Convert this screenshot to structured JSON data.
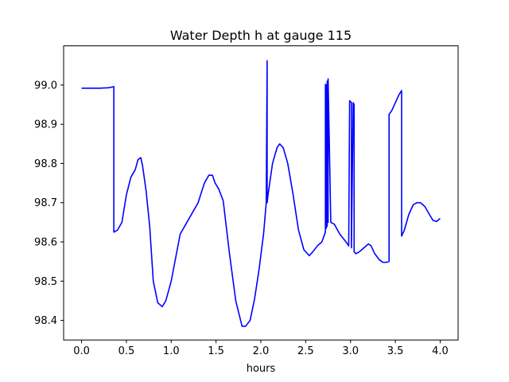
{
  "chart_data": {
    "type": "line",
    "title": "Water Depth h at gauge 115",
    "xlabel": "hours",
    "ylabel": "",
    "xlim": [
      -0.2,
      4.2
    ],
    "ylim": [
      98.35,
      99.1
    ],
    "grid": false,
    "colors": {
      "line": "#0000ff",
      "axes": "#000000",
      "background": "#ffffff"
    },
    "x_ticks": [
      {
        "value": 0.0,
        "label": "0.0"
      },
      {
        "value": 0.5,
        "label": "0.5"
      },
      {
        "value": 1.0,
        "label": "1.0"
      },
      {
        "value": 1.5,
        "label": "1.5"
      },
      {
        "value": 2.0,
        "label": "2.0"
      },
      {
        "value": 2.5,
        "label": "2.5"
      },
      {
        "value": 3.0,
        "label": "3.0"
      },
      {
        "value": 3.5,
        "label": "3.5"
      },
      {
        "value": 4.0,
        "label": "4.0"
      }
    ],
    "y_ticks": [
      {
        "value": 98.4,
        "label": "98.4"
      },
      {
        "value": 98.5,
        "label": "98.5"
      },
      {
        "value": 98.6,
        "label": "98.6"
      },
      {
        "value": 98.7,
        "label": "98.7"
      },
      {
        "value": 98.8,
        "label": "98.8"
      },
      {
        "value": 98.9,
        "label": "98.9"
      },
      {
        "value": 99.0,
        "label": "99.0"
      }
    ],
    "series": [
      {
        "x": [
          0.0,
          0.1,
          0.2,
          0.3,
          0.36,
          0.36,
          0.4,
          0.45,
          0.5,
          0.55,
          0.6,
          0.63,
          0.66,
          0.68,
          0.72,
          0.76,
          0.8,
          0.85,
          0.9,
          0.94,
          1.0,
          1.1,
          1.2,
          1.3,
          1.37,
          1.42,
          1.46,
          1.49,
          1.53,
          1.58,
          1.65,
          1.72,
          1.79,
          1.83,
          1.88,
          1.93,
          1.98,
          2.03,
          2.06,
          2.07,
          2.07,
          2.08,
          2.13,
          2.18,
          2.21,
          2.25,
          2.3,
          2.36,
          2.42,
          2.48,
          2.54,
          2.58,
          2.63,
          2.68,
          2.72,
          2.72,
          2.73,
          2.73,
          2.74,
          2.74,
          2.75,
          2.75,
          2.78,
          2.82,
          2.88,
          2.95,
          2.98,
          2.99,
          3.01,
          3.01,
          3.03,
          3.04,
          3.04,
          3.06,
          3.1,
          3.15,
          3.2,
          3.23,
          3.27,
          3.32,
          3.36,
          3.4,
          3.43,
          3.43,
          3.46,
          3.5,
          3.54,
          3.57,
          3.57,
          3.6,
          3.65,
          3.7,
          3.74,
          3.78,
          3.83,
          3.88,
          3.92,
          3.96,
          4.0
        ],
        "y": [
          98.992,
          98.992,
          98.992,
          98.993,
          98.996,
          98.625,
          98.63,
          98.65,
          98.72,
          98.765,
          98.785,
          98.81,
          98.815,
          98.795,
          98.73,
          98.64,
          98.5,
          98.445,
          98.435,
          98.45,
          98.5,
          98.62,
          98.66,
          98.7,
          98.75,
          98.77,
          98.77,
          98.75,
          98.735,
          98.705,
          98.57,
          98.45,
          98.385,
          98.385,
          98.4,
          98.455,
          98.53,
          98.62,
          98.7,
          99.062,
          98.7,
          98.72,
          98.8,
          98.84,
          98.85,
          98.84,
          98.8,
          98.72,
          98.63,
          98.58,
          98.565,
          98.575,
          98.59,
          98.6,
          98.625,
          99.002,
          98.635,
          99.0,
          98.64,
          99.01,
          98.65,
          99.016,
          98.65,
          98.645,
          98.62,
          98.6,
          98.59,
          98.96,
          98.955,
          98.585,
          98.955,
          98.95,
          98.575,
          98.57,
          98.575,
          98.585,
          98.595,
          98.59,
          98.57,
          98.555,
          98.548,
          98.548,
          98.55,
          98.925,
          98.935,
          98.955,
          98.975,
          98.986,
          98.615,
          98.63,
          98.67,
          98.695,
          98.7,
          98.7,
          98.69,
          98.67,
          98.655,
          98.652,
          98.66
        ]
      }
    ]
  }
}
